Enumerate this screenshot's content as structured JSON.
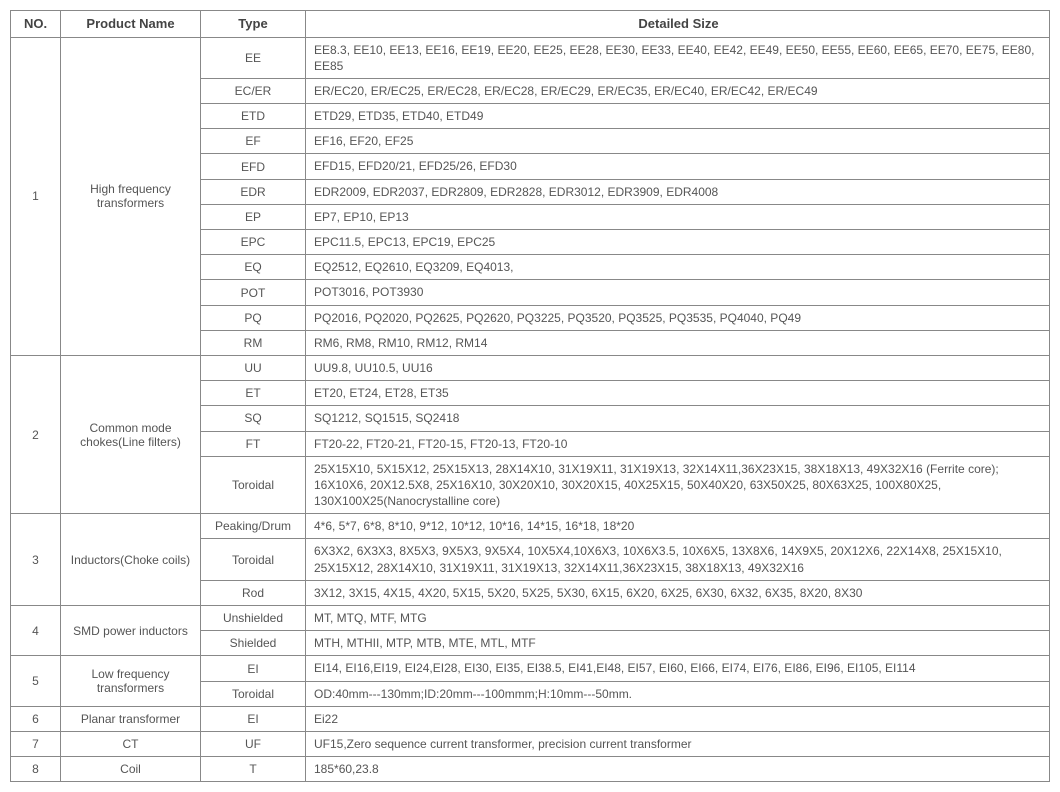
{
  "headers": {
    "no": "NO.",
    "product": "Product Name",
    "type": "Type",
    "detail": "Detailed Size"
  },
  "groups": [
    {
      "no": "1",
      "product": "High frequency transformers",
      "rows": [
        {
          "type": "EE",
          "detail": "EE8.3, EE10, EE13, EE16, EE19, EE20, EE25, EE28, EE30, EE33, EE40, EE42, EE49, EE50, EE55, EE60, EE65, EE70, EE75, EE80, EE85"
        },
        {
          "type": "EC/ER",
          "detail": "ER/EC20, ER/EC25, ER/EC28, ER/EC28, ER/EC29, ER/EC35, ER/EC40, ER/EC42, ER/EC49"
        },
        {
          "type": "ETD",
          "detail": "ETD29, ETD35, ETD40, ETD49"
        },
        {
          "type": "EF",
          "detail": "EF16, EF20, EF25"
        },
        {
          "type": "EFD",
          "detail": "EFD15, EFD20/21, EFD25/26, EFD30"
        },
        {
          "type": "EDR",
          "detail": "EDR2009, EDR2037, EDR2809, EDR2828, EDR3012, EDR3909, EDR4008"
        },
        {
          "type": "EP",
          "detail": "EP7, EP10, EP13"
        },
        {
          "type": "EPC",
          "detail": "EPC11.5, EPC13, EPC19, EPC25"
        },
        {
          "type": "EQ",
          "detail": "EQ2512, EQ2610, EQ3209, EQ4013,"
        },
        {
          "type": "POT",
          "detail": "POT3016, POT3930"
        },
        {
          "type": "PQ",
          "detail": "PQ2016, PQ2020, PQ2625, PQ2620, PQ3225, PQ3520, PQ3525, PQ3535, PQ4040, PQ49"
        },
        {
          "type": "RM",
          "detail": "RM6, RM8, RM10, RM12, RM14"
        }
      ]
    },
    {
      "no": "2",
      "product": "Common mode chokes(Line filters)",
      "rows": [
        {
          "type": "UU",
          "detail": "UU9.8, UU10.5, UU16"
        },
        {
          "type": "ET",
          "detail": "ET20, ET24, ET28, ET35"
        },
        {
          "type": "SQ",
          "detail": "SQ1212, SQ1515, SQ2418"
        },
        {
          "type": "FT",
          "detail": "FT20-22, FT20-21, FT20-15, FT20-13, FT20-10"
        },
        {
          "type": "Toroidal",
          "detail": "25X15X10, 5X15X12, 25X15X13, 28X14X10, 31X19X11, 31X19X13, 32X14X11,36X23X15, 38X18X13, 49X32X16 (Ferrite core); 16X10X6, 20X12.5X8, 25X16X10, 30X20X10, 30X20X15, 40X25X15, 50X40X20, 63X50X25, 80X63X25, 100X80X25, 130X100X25(Nanocrystalline core)"
        }
      ]
    },
    {
      "no": "3",
      "product": "Inductors(Choke coils)",
      "rows": [
        {
          "type": "Peaking/Drum",
          "detail": "4*6, 5*7, 6*8, 8*10, 9*12, 10*12, 10*16, 14*15, 16*18, 18*20"
        },
        {
          "type": "Toroidal",
          "detail": "6X3X2, 6X3X3, 8X5X3, 9X5X3, 9X5X4, 10X5X4,10X6X3, 10X6X3.5, 10X6X5, 13X8X6, 14X9X5, 20X12X6, 22X14X8, 25X15X10, 25X15X12, 28X14X10, 31X19X11, 31X19X13, 32X14X11,36X23X15, 38X18X13, 49X32X16"
        },
        {
          "type": "Rod",
          "detail": "3X12, 3X15, 4X15, 4X20, 5X15, 5X20, 5X25, 5X30, 6X15, 6X20, 6X25, 6X30, 6X32, 6X35, 8X20, 8X30"
        }
      ]
    },
    {
      "no": "4",
      "product": "SMD power inductors",
      "rows": [
        {
          "type": "Unshielded",
          "detail": "MT, MTQ, MTF, MTG"
        },
        {
          "type": "Shielded",
          "detail": "MTH, MTHII, MTP, MTB, MTE, MTL, MTF"
        }
      ]
    },
    {
      "no": "5",
      "product": "Low frequency transformers",
      "rows": [
        {
          "type": "EI",
          "detail": "EI14, EI16,EI19, EI24,EI28, EI30, EI35, EI38.5,  EI41,EI48,  EI57, EI60, EI66, EI74,  EI76, EI86, EI96, EI105, EI114"
        },
        {
          "type": "Toroidal",
          "detail": "OD:40mm---130mm;ID:20mm---100mmm;H:10mm---50mm."
        }
      ]
    },
    {
      "no": "6",
      "product": "Planar transformer",
      "rows": [
        {
          "type": "EI",
          "detail": "Ei22"
        }
      ]
    },
    {
      "no": "7",
      "product": "CT",
      "rows": [
        {
          "type": "UF",
          "detail": "UF15,Zero sequence current transformer, precision current transformer"
        }
      ]
    },
    {
      "no": "8",
      "product": "Coil",
      "rows": [
        {
          "type": "T",
          "detail": "185*60,23.8"
        }
      ]
    }
  ]
}
